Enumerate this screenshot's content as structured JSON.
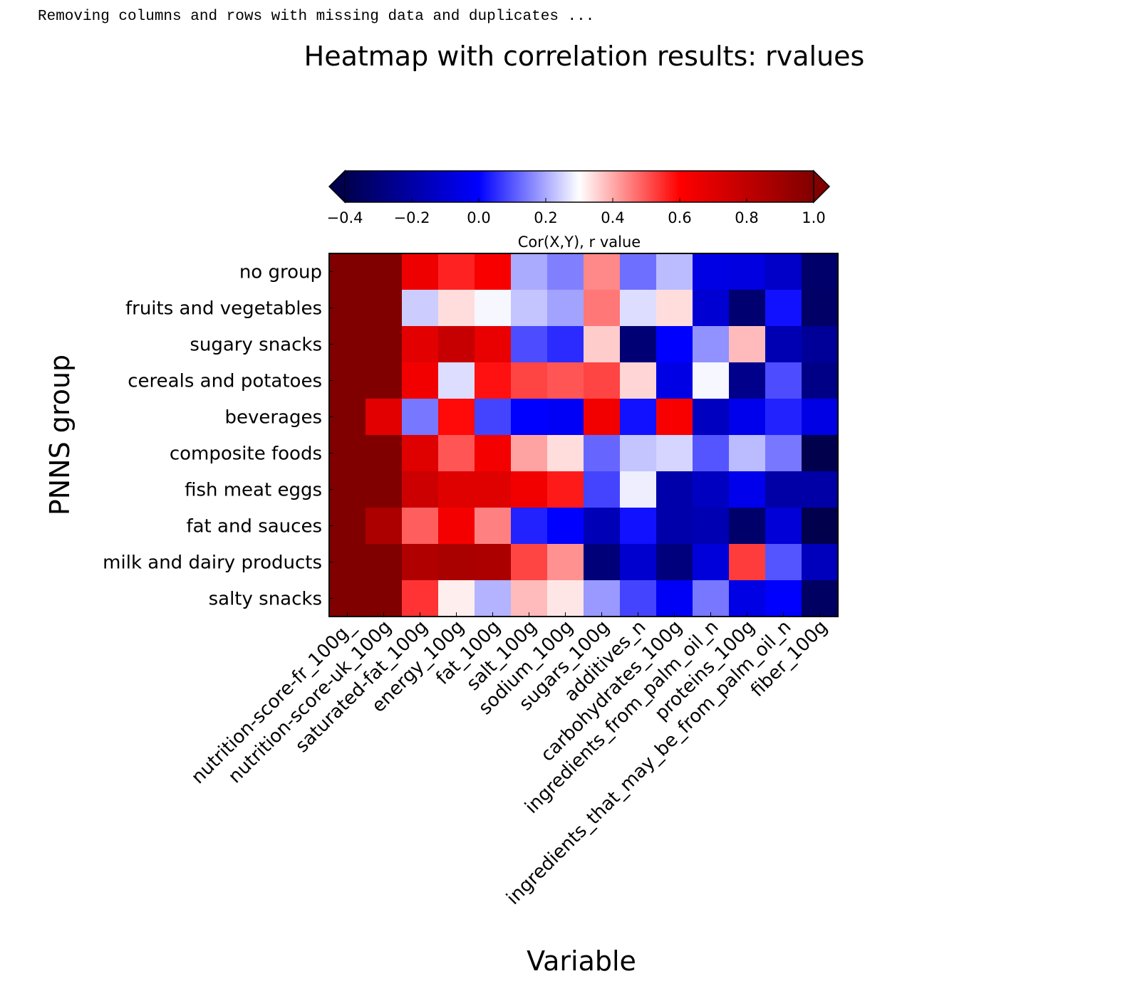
{
  "console": {
    "message": "Removing columns and rows with missing data and duplicates ..."
  },
  "chart_data": {
    "type": "heatmap",
    "title": "Heatmap with correlation results: rvalues",
    "xlabel": "Variable",
    "ylabel": "PNNS group",
    "colorbar": {
      "label": "Cor(X,Y), r value",
      "range": [
        -0.4,
        1.0
      ],
      "ticks": [
        -0.4,
        -0.2,
        0.0,
        0.2,
        0.4,
        0.6,
        0.8,
        1.0
      ],
      "tick_labels": [
        "−0.4",
        "−0.2",
        "0.0",
        "0.2",
        "0.4",
        "0.6",
        "0.8",
        "1.0"
      ],
      "extend": "both",
      "location": "top",
      "colormap": "seismic"
    },
    "columns": [
      "nutrition-score-fr_100g_",
      "nutrition-score-uk_100g",
      "saturated-fat_100g",
      "energy_100g",
      "fat_100g",
      "salt_100g",
      "sodium_100g",
      "sugars_100g",
      "additives_n",
      "carbohydrates_100g",
      "ingredients_from_palm_oil_n",
      "proteins_100g",
      "ingredients_that_may_be_from_palm_oil_n",
      "fiber_100g"
    ],
    "rows": [
      "no group",
      "fruits and vegetables",
      "sugary snacks",
      "cereals and potatoes",
      "beverages",
      "composite foods",
      "fish meat eggs",
      "fat and sauces",
      "milk and dairy products",
      "salty snacks"
    ],
    "values": [
      [
        1.0,
        1.0,
        0.65,
        0.56,
        0.62,
        0.2,
        0.15,
        0.44,
        0.13,
        0.22,
        -0.06,
        -0.07,
        -0.12,
        -0.33
      ],
      [
        1.0,
        1.0,
        0.24,
        0.34,
        0.29,
        0.23,
        0.19,
        0.46,
        0.26,
        0.34,
        -0.1,
        -0.32,
        0.02,
        -0.34
      ],
      [
        1.0,
        1.0,
        0.69,
        0.78,
        0.67,
        0.09,
        0.05,
        0.36,
        -0.31,
        0.0,
        0.17,
        0.38,
        -0.17,
        -0.23
      ],
      [
        1.0,
        1.0,
        0.64,
        0.26,
        0.58,
        0.52,
        0.5,
        0.52,
        0.35,
        -0.06,
        0.29,
        -0.26,
        0.09,
        -0.27
      ],
      [
        1.0,
        0.69,
        0.14,
        0.59,
        0.08,
        0.0,
        -0.02,
        0.64,
        0.02,
        0.62,
        -0.14,
        -0.04,
        0.04,
        -0.06
      ],
      [
        1.0,
        1.0,
        0.7,
        0.5,
        0.63,
        0.41,
        0.34,
        0.12,
        0.23,
        0.25,
        0.1,
        0.22,
        0.14,
        -0.4
      ],
      [
        1.0,
        1.0,
        0.76,
        0.7,
        0.7,
        0.64,
        0.57,
        0.08,
        0.28,
        -0.19,
        -0.14,
        -0.04,
        -0.2,
        -0.2
      ],
      [
        1.0,
        0.86,
        0.49,
        0.63,
        0.45,
        0.04,
        0.0,
        -0.16,
        0.02,
        -0.19,
        -0.17,
        -0.33,
        -0.09,
        -0.4
      ],
      [
        1.0,
        1.0,
        0.85,
        0.87,
        0.86,
        0.52,
        0.43,
        -0.3,
        -0.11,
        -0.29,
        -0.08,
        0.53,
        0.1,
        -0.15
      ],
      [
        1.0,
        1.0,
        0.54,
        0.32,
        0.21,
        0.38,
        0.33,
        0.18,
        0.08,
        -0.02,
        0.14,
        -0.06,
        0.0,
        -0.35
      ]
    ],
    "grid": false
  }
}
